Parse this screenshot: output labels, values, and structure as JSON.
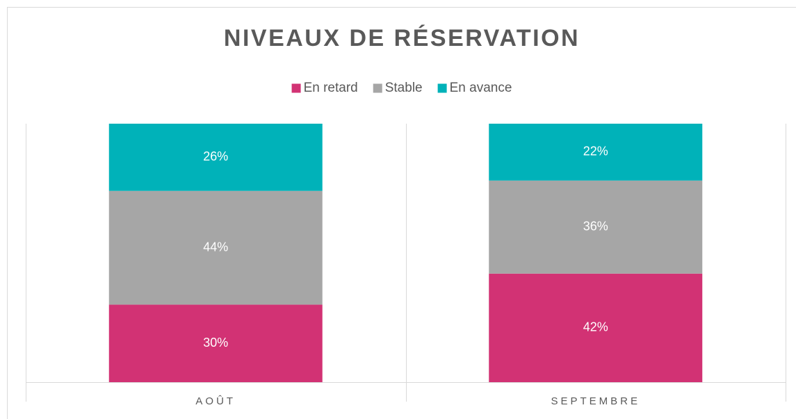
{
  "chart_data": {
    "type": "stacked_bar",
    "title": "NIVEAUX DE RÉSERVATION",
    "categories": [
      "AOÛT",
      "SEPTEMBRE"
    ],
    "series": [
      {
        "name": "En retard",
        "color": "#d23274",
        "values": [
          30,
          42
        ],
        "value_labels": [
          "30%",
          "42%"
        ]
      },
      {
        "name": "Stable",
        "color": "#a6a6a6",
        "values": [
          44,
          36
        ],
        "value_labels": [
          "44%",
          "36%"
        ]
      },
      {
        "name": "En avance",
        "color": "#00b2b9",
        "values": [
          26,
          22
        ],
        "value_labels": [
          "26%",
          "22%"
        ]
      }
    ],
    "ylim": [
      0,
      100
    ]
  }
}
